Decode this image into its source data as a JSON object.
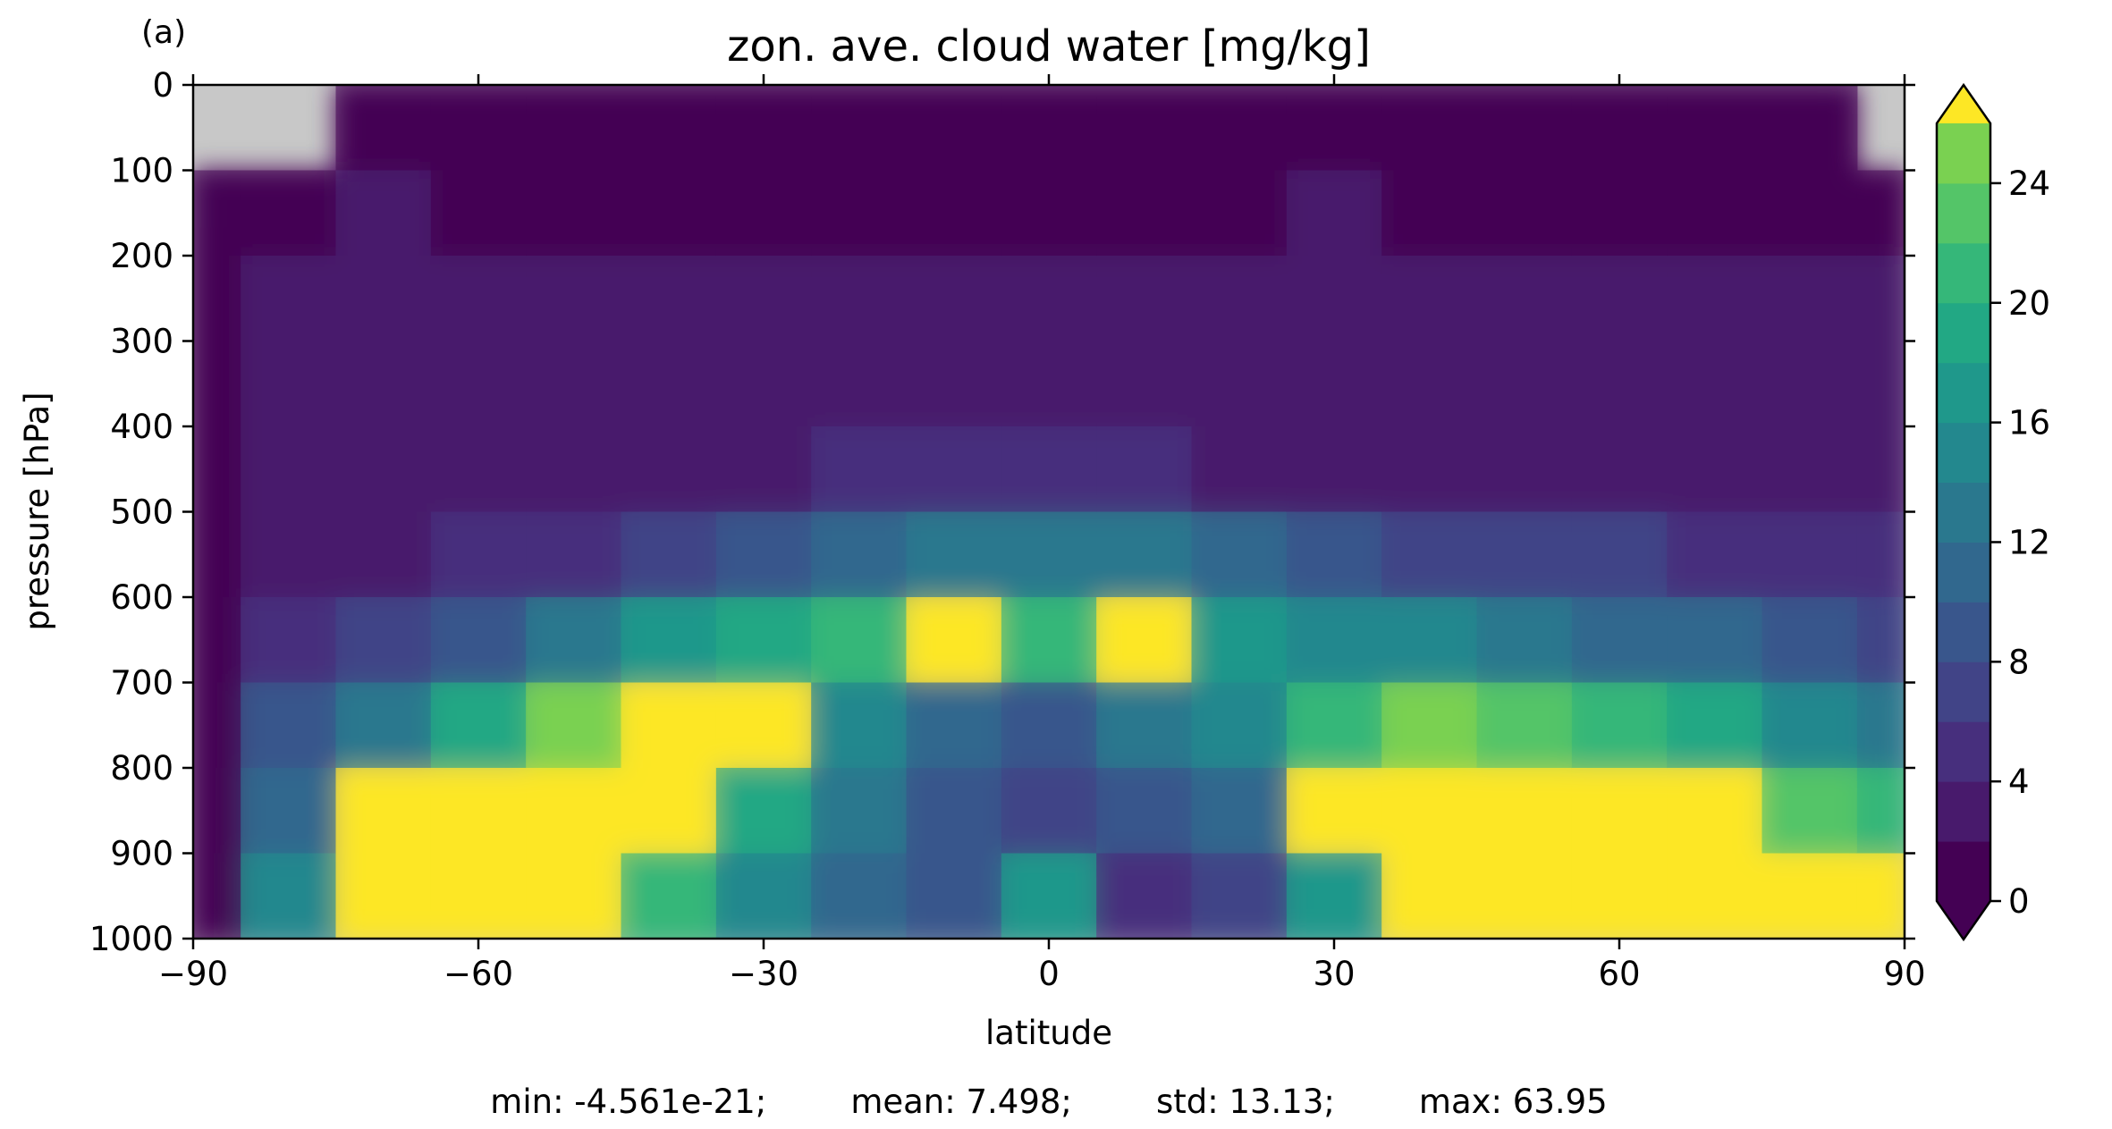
{
  "chart_data": {
    "type": "heatmap",
    "panel_label": "(a)",
    "title": "zon. ave. cloud water [mg/kg]",
    "xlabel": "latitude",
    "ylabel": "pressure [hPa]",
    "xlim": [
      -90,
      90
    ],
    "ylim": [
      1000,
      0
    ],
    "x_ticks": [
      -90,
      -60,
      -30,
      0,
      30,
      60,
      90
    ],
    "x_tick_labels": [
      "−90",
      "−60",
      "−30",
      "0",
      "30",
      "60",
      "90"
    ],
    "y_ticks": [
      0,
      100,
      200,
      300,
      400,
      500,
      600,
      700,
      800,
      900,
      1000
    ],
    "y_tick_labels": [
      "0",
      "100",
      "200",
      "300",
      "400",
      "500",
      "600",
      "700",
      "800",
      "900",
      "1000"
    ],
    "colorbar": {
      "min": 0,
      "max": 26,
      "level_step": 2,
      "extend": "both",
      "ticks": [
        0,
        4,
        8,
        12,
        16,
        20,
        24
      ],
      "tick_labels": [
        "0",
        "4",
        "8",
        "12",
        "16",
        "20",
        "24"
      ],
      "colors": [
        "#440154",
        "#481a6c",
        "#472f7d",
        "#414487",
        "#39568c",
        "#31688e",
        "#2a788e",
        "#23888e",
        "#1f988b",
        "#22a884",
        "#35b779",
        "#54c568",
        "#7ad151",
        "#fde725"
      ]
    },
    "missing_color": "#c8c8c8",
    "latitudes": [
      -90,
      -80,
      -70,
      -60,
      -50,
      -40,
      -30,
      -20,
      -10,
      0,
      10,
      20,
      30,
      40,
      50,
      60,
      70,
      80,
      90
    ],
    "pressures": [
      50,
      150,
      250,
      350,
      450,
      550,
      650,
      750,
      850,
      950
    ],
    "values": [
      [
        -1,
        1.5,
        0.5,
        1.5,
        0.5,
        1.5,
        1.5,
        0.5,
        1.5,
        0.5
      ],
      [
        -1,
        1.5,
        2.5,
        2.5,
        2.5,
        2.5,
        5,
        8,
        10,
        14
      ],
      [
        1.5,
        2.5,
        2.5,
        2.5,
        2.5,
        3.5,
        7,
        13,
        27,
        27
      ],
      [
        0.5,
        1.5,
        2.5,
        2.5,
        2.5,
        4.5,
        9,
        18,
        27,
        27
      ],
      [
        0.5,
        1.5,
        2.5,
        2.5,
        2.5,
        5.5,
        12,
        24,
        27,
        27
      ],
      [
        0.5,
        1.5,
        2.5,
        2.5,
        3.5,
        7,
        16,
        27,
        27,
        20
      ],
      [
        0.5,
        1.5,
        2.5,
        2.5,
        3.5,
        8,
        18,
        26,
        18,
        14
      ],
      [
        0.5,
        1.5,
        2.5,
        2.5,
        4,
        10,
        20,
        14,
        12,
        10
      ],
      [
        0.5,
        1.5,
        2.5,
        2.5,
        4.5,
        12,
        27,
        10,
        8,
        8
      ],
      [
        0.5,
        1.5,
        2.5,
        2.5,
        4.5,
        12,
        20,
        8,
        6,
        16
      ],
      [
        0.5,
        1.5,
        2.5,
        2.5,
        4,
        13,
        27,
        12,
        8,
        4
      ],
      [
        0.5,
        1.5,
        2.5,
        2.5,
        3.5,
        10,
        16,
        14,
        10,
        6
      ],
      [
        0.5,
        2.5,
        2.5,
        2.5,
        3.5,
        9,
        14,
        20,
        26,
        16
      ],
      [
        0.5,
        1.5,
        2.5,
        2.5,
        3,
        7,
        14,
        24,
        27,
        27
      ],
      [
        0.5,
        1.5,
        2.5,
        2.5,
        3,
        6,
        12,
        22,
        27,
        27
      ],
      [
        0.5,
        1.5,
        2.5,
        2.5,
        3,
        6,
        11,
        20,
        27,
        27
      ],
      [
        0.5,
        1.5,
        2.5,
        2.5,
        2.5,
        5.5,
        10,
        18,
        27,
        27
      ],
      [
        0.5,
        0.5,
        2.5,
        2.5,
        2.5,
        4.5,
        8,
        14,
        22,
        27
      ],
      [
        -1,
        1.5,
        2.5,
        2.5,
        2.5,
        4,
        7,
        12,
        20,
        27
      ]
    ],
    "statistics_text": "min: -4.561e-21;        mean: 7.498;        std: 13.13;        max: 63.95"
  }
}
